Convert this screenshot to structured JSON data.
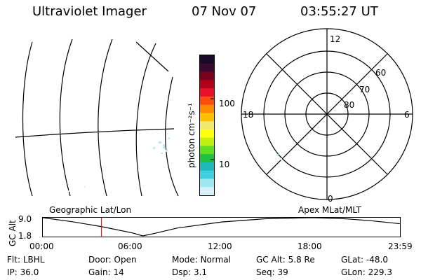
{
  "header": {
    "instrument": "Ultraviolet Imager",
    "date": "07 Nov 07",
    "time": "03:55:27 UT"
  },
  "colorbar": {
    "unit_label": "photon cm⁻²s⁻¹",
    "ticks": [
      "100",
      "10"
    ],
    "colors": [
      "#1a0a2a",
      "#3a0a30",
      "#7a0020",
      "#b0001a",
      "#e8102a",
      "#ff4a10",
      "#ff8a00",
      "#ffc000",
      "#f0e870",
      "#ffff10",
      "#c0f010",
      "#60e020",
      "#20c040",
      "#20b8b8",
      "#40d0e0",
      "#a0e8f0",
      "#d8f0f8"
    ]
  },
  "polar": {
    "mlt_labels": {
      "top": "12",
      "left": "18",
      "right": "6",
      "bottom": "0"
    },
    "lat_labels": [
      "60",
      "70",
      "80"
    ]
  },
  "plot": {
    "ylabel": "GC Alt",
    "yticks": [
      "9.0",
      "1.8"
    ],
    "left_label": "Geographic Lat/Lon",
    "right_label": "Apex MLat/MLT",
    "xticks": [
      "00:00",
      "06:00",
      "12:00",
      "18:00",
      "23:59"
    ]
  },
  "chart_data": {
    "type": "line",
    "x_label_format": "hours UT",
    "x_range": [
      "00:00",
      "23:59"
    ],
    "y_range": [
      1.8,
      9.0
    ],
    "series": [
      {
        "x": [
          0,
          2,
          4,
          6,
          6.7,
          7.5,
          9,
          12,
          15,
          18,
          20,
          22,
          24
        ],
        "y": [
          9.0,
          7.4,
          5.4,
          3.0,
          1.8,
          2.8,
          4.9,
          7.3,
          8.6,
          9.0,
          8.7,
          7.8,
          6.6
        ]
      }
    ],
    "marker_time_hours": 3.93
  },
  "info": {
    "row1": [
      {
        "k": "Flt:",
        "v": "LBHL"
      },
      {
        "k": "Door:",
        "v": "Open"
      },
      {
        "k": "Mode:",
        "v": "Normal"
      },
      {
        "k": "GC Alt:",
        "v": "5.8 Re"
      },
      {
        "k": "GLat:",
        "v": "-48.0"
      }
    ],
    "row2": [
      {
        "k": "IP:",
        "v": "36.0"
      },
      {
        "k": "Gain:",
        "v": "14"
      },
      {
        "k": "Dsp:",
        "v": "3.1"
      },
      {
        "k": "Seq:",
        "v": "39"
      },
      {
        "k": "GLon:",
        "v": "229.3"
      }
    ]
  }
}
